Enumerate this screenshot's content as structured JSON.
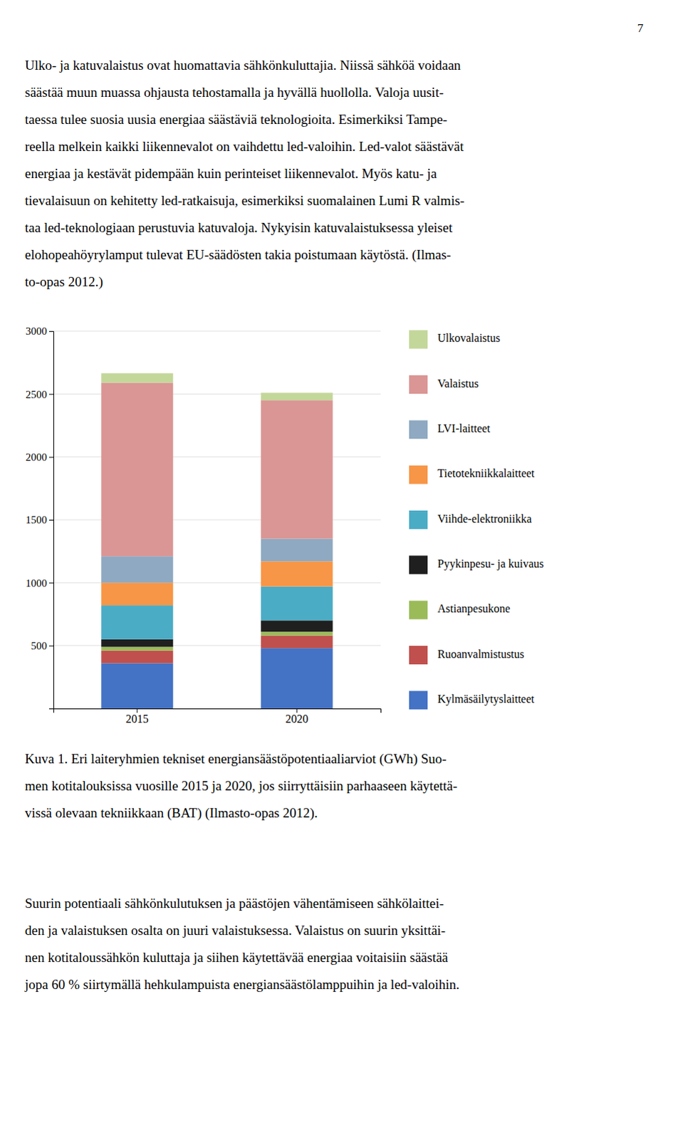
{
  "page_number": "7",
  "top_text_lines": [
    "Ulko- ja katuvalaistus ovat huomattavia sähkönkuluttajia. Niissä sähköä voidaan",
    "säästää muun muassa ohjausta tehostamalla ja hyvällä huollolla. Valoja uusit-",
    "taessa tulee suosia uusia energiaa säästäviä teknologioita. Esimerkiksi Tampe-",
    "reella melkein kaikki liikennevalot on vaihdettu led-valoihin. Led-valot säästävät",
    "energiaa ja kestävät pidempään kuin perinteiset liikennevalot. Myös katu- ja",
    "tievalaisuun on kehitetty led-ratkaisuja, esimerkiksi suomalainen Lumi R valmis-",
    "taa led-teknologiaan perustuvia katuvaloja. Nykyisin katuvalaistuksessa yleiset",
    "elohopeahöyrylamput tulevat EU-säädösten takia poistumaan käytöstä. (Ilmas-",
    "to-opas 2012.)"
  ],
  "caption_lines": [
    "Kuva 1. Eri laiteryhmien tekniset energiansäästöpotentiaaliarviot (GWh) Suo-",
    "men kotitalouksissa vuosille 2015 ja 2020, jos siirryttäisiin parhaaseen käytettä-",
    "vissä olevaan tekniikkaan (BAT) (Ilmasto-opas 2012)."
  ],
  "bottom_text_lines": [
    "Suurin potentiaali sähkönkulutuksen ja päästöjen vähentämiseen sähkölaittei-",
    "den ja valaistuksen osalta on juuri valaistuksessa. Valaistus on suurin yksittäi-",
    "nen kotitaloussähkön kuluttaja ja siihen käytettävää energiaa voitaisiin säästää",
    "jopa 60 % siirtymällä hehkulampuista energiansäästölamppuihin ja led-valoihin."
  ],
  "chart_data": {
    "type": "bar",
    "stacked": true,
    "categories": [
      "2015",
      "2020"
    ],
    "series": [
      {
        "name": "Kylmäsäilytyslaitteet",
        "color": "#4472C4",
        "values": [
          360,
          480
        ]
      },
      {
        "name": "Ruoanvalmistustus",
        "color": "#C0504D",
        "values": [
          100,
          100
        ]
      },
      {
        "name": "Astianpesukone",
        "color": "#9BBB59",
        "values": [
          30,
          30
        ]
      },
      {
        "name": "Pyykinpesu- ja kuivaus",
        "color": "#1F1F1F",
        "values": [
          60,
          90
        ]
      },
      {
        "name": "Viihde-elektroniikka",
        "color": "#4BACC6",
        "values": [
          270,
          270
        ]
      },
      {
        "name": "Tietotekniikkalaitteet",
        "color": "#F79646",
        "values": [
          180,
          200
        ]
      },
      {
        "name": "LVI-laitteet",
        "color": "#8EA9C1",
        "values": [
          210,
          180
        ]
      },
      {
        "name": "Valaistus",
        "color": "#DA9694",
        "values": [
          1380,
          1100
        ]
      },
      {
        "name": "Ulkovalaistus",
        "color": "#C4D79B",
        "values": [
          75,
          60
        ]
      }
    ],
    "ylim": [
      0,
      3000
    ],
    "yticks": [
      500,
      1000,
      1500,
      2000,
      2500,
      3000
    ],
    "grid": true,
    "legend": "right"
  }
}
